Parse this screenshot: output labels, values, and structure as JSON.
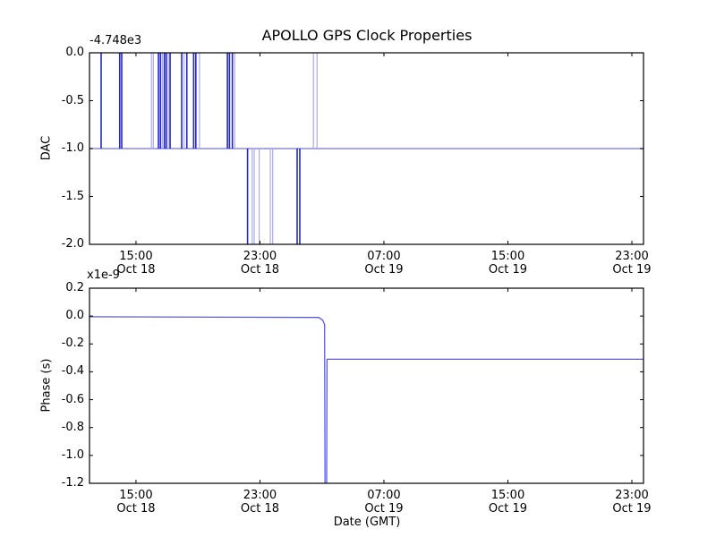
{
  "colors": {
    "background": "#ffffff",
    "frame": "#000000",
    "text": "#000000",
    "trace": "#5a5ae8",
    "trace_light": "#8888ee",
    "trace_dark": "#2525cc",
    "trace_faint": "#aaaaf0"
  },
  "chart_data": [
    {
      "name": "dac",
      "type": "line",
      "title": "APOLLO GPS Clock Properties",
      "ylabel": "DAC",
      "y_offset_label": "-4.748e3",
      "ylim": [
        -2.0,
        0.0
      ],
      "yticks": [
        {
          "value": 0.0,
          "label": "0.0"
        },
        {
          "value": -0.5,
          "label": "-0.5"
        },
        {
          "value": -1.0,
          "label": "-1.0"
        },
        {
          "value": -1.5,
          "label": "-1.5"
        },
        {
          "value": -2.0,
          "label": "-2.0"
        }
      ],
      "x_unit": "hours since Oct 18 00:00 GMT",
      "xlim_hours": [
        12.0,
        47.75
      ],
      "xticks": [
        {
          "hour": 15,
          "time": "15:00",
          "date": "Oct 18"
        },
        {
          "hour": 23,
          "time": "23:00",
          "date": "Oct 18"
        },
        {
          "hour": 31,
          "time": "07:00",
          "date": "Oct 19"
        },
        {
          "hour": 39,
          "time": "15:00",
          "date": "Oct 19"
        },
        {
          "hour": 47,
          "time": "23:00",
          "date": "Oct 19"
        }
      ],
      "baseline_value": -1.0,
      "spike_top": 0.0,
      "spike_bottom": -2.0,
      "up_spikes": [
        {
          "hour": 12.75,
          "faint": false
        },
        {
          "hour": 13.95,
          "faint": false
        },
        {
          "hour": 14.08,
          "faint": false
        },
        {
          "hour": 16.0,
          "faint": true
        },
        {
          "hour": 16.12,
          "faint": true
        },
        {
          "hour": 16.45,
          "faint": false
        },
        {
          "hour": 16.58,
          "faint": false
        },
        {
          "hour": 16.7,
          "faint": true
        },
        {
          "hour": 16.83,
          "faint": false
        },
        {
          "hour": 16.95,
          "faint": false
        },
        {
          "hour": 17.08,
          "faint": true
        },
        {
          "hour": 17.2,
          "faint": false
        },
        {
          "hour": 17.95,
          "faint": false
        },
        {
          "hour": 18.1,
          "faint": true
        },
        {
          "hour": 18.28,
          "faint": false
        },
        {
          "hour": 18.72,
          "faint": false
        },
        {
          "hour": 18.86,
          "faint": false
        },
        {
          "hour": 19.1,
          "faint": true
        },
        {
          "hour": 20.9,
          "faint": false
        },
        {
          "hour": 21.03,
          "faint": false
        },
        {
          "hour": 21.22,
          "faint": false
        },
        {
          "hour": 21.37,
          "faint": true
        },
        {
          "hour": 26.45,
          "faint": true
        },
        {
          "hour": 26.68,
          "faint": true
        }
      ],
      "down_spikes": [
        {
          "hour": 22.2,
          "faint": false
        },
        {
          "hour": 22.5,
          "faint": true
        },
        {
          "hour": 22.63,
          "faint": true
        },
        {
          "hour": 22.95,
          "faint": true
        },
        {
          "hour": 23.67,
          "faint": true
        },
        {
          "hour": 23.82,
          "faint": true
        },
        {
          "hour": 25.4,
          "faint": false
        },
        {
          "hour": 25.57,
          "faint": false
        }
      ]
    },
    {
      "name": "phase",
      "type": "line",
      "ylabel": "Phase (s)",
      "scale_label": "x1e-9",
      "xlabel": "Date (GMT)",
      "ylim": [
        -1.2,
        0.2
      ],
      "yticks": [
        {
          "value": 0.2,
          "label": "0.2"
        },
        {
          "value": 0.0,
          "label": "0.0"
        },
        {
          "value": -0.2,
          "label": "-0.2"
        },
        {
          "value": -0.4,
          "label": "-0.4"
        },
        {
          "value": -0.6,
          "label": "-0.6"
        },
        {
          "value": -0.8,
          "label": "-0.8"
        },
        {
          "value": -1.0,
          "label": "-1.0"
        },
        {
          "value": -1.2,
          "label": "-1.2"
        }
      ],
      "x_unit": "hours since Oct 18 00:00 GMT",
      "xlim_hours": [
        12.0,
        47.75
      ],
      "xticks": [
        {
          "hour": 15,
          "time": "15:00",
          "date": "Oct 18"
        },
        {
          "hour": 23,
          "time": "23:00",
          "date": "Oct 18"
        },
        {
          "hour": 31,
          "time": "07:00",
          "date": "Oct 19"
        },
        {
          "hour": 39,
          "time": "15:00",
          "date": "Oct 19"
        },
        {
          "hour": 47,
          "time": "23:00",
          "date": "Oct 19"
        }
      ],
      "points": [
        [
          12.0,
          -0.005
        ],
        [
          26.8,
          -0.01
        ],
        [
          27.05,
          -0.03
        ],
        [
          27.17,
          -0.06
        ],
        [
          27.2,
          -1.35
        ],
        [
          27.3,
          -1.35
        ],
        [
          27.33,
          -0.31
        ],
        [
          47.75,
          -0.31
        ]
      ]
    }
  ]
}
